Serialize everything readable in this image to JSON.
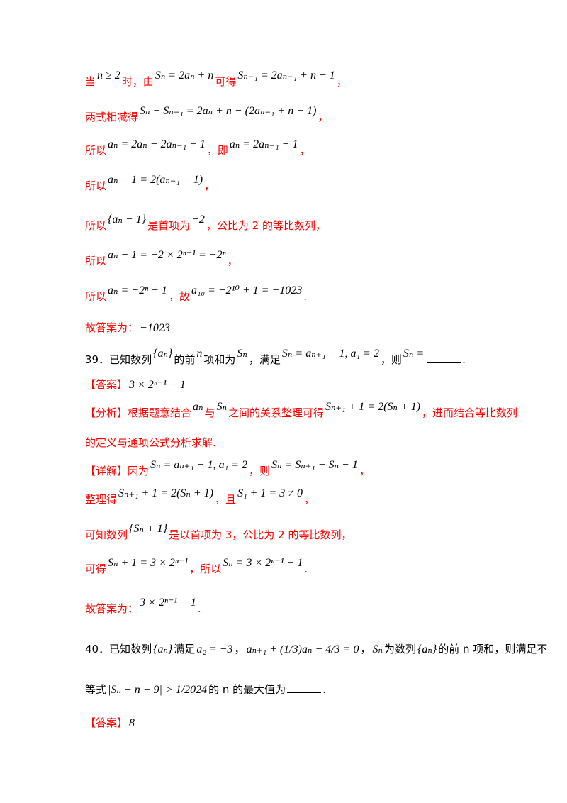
{
  "lines": [
    {
      "segments": [
        {
          "k": "red",
          "t": "当"
        },
        {
          "k": "math",
          "t": "n ≥ 2"
        },
        {
          "k": "red",
          "t": "时，由"
        },
        {
          "k": "math",
          "t": "Sₙ = 2aₙ + n"
        },
        {
          "k": "red",
          "t": "可得"
        },
        {
          "k": "math",
          "t": "Sₙ₋₁ = 2aₙ₋₁ + n − 1"
        },
        {
          "k": "red",
          "t": "，"
        }
      ]
    },
    {
      "segments": [
        {
          "k": "red",
          "t": "两式相减得"
        },
        {
          "k": "math",
          "t": "Sₙ − Sₙ₋₁ = 2aₙ + n − (2aₙ₋₁ + n − 1)"
        },
        {
          "k": "red",
          "t": "，"
        }
      ]
    },
    {
      "segments": [
        {
          "k": "red",
          "t": "所以"
        },
        {
          "k": "math",
          "t": "aₙ = 2aₙ − 2aₙ₋₁ + 1"
        },
        {
          "k": "red",
          "t": "，即"
        },
        {
          "k": "math",
          "t": "aₙ = 2aₙ₋₁ − 1"
        },
        {
          "k": "red",
          "t": "，"
        }
      ]
    },
    {
      "segments": [
        {
          "k": "red",
          "t": "所以"
        },
        {
          "k": "math",
          "t": "aₙ − 1 = 2(aₙ₋₁ − 1)"
        },
        {
          "k": "red",
          "t": "，"
        }
      ]
    },
    {
      "segments": [
        {
          "k": "red",
          "t": "所以"
        },
        {
          "k": "math",
          "t": "{aₙ − 1}"
        },
        {
          "k": "red",
          "t": "是首项为"
        },
        {
          "k": "math",
          "t": "−2"
        },
        {
          "k": "red",
          "t": "，公比为 2 的等比数列，"
        }
      ]
    },
    {
      "segments": [
        {
          "k": "red",
          "t": "所以"
        },
        {
          "k": "math",
          "t": "aₙ − 1 = −2 × 2ⁿ⁻¹ = −2ⁿ"
        },
        {
          "k": "red",
          "t": "，"
        }
      ]
    },
    {
      "segments": [
        {
          "k": "red",
          "t": "所以"
        },
        {
          "k": "math",
          "t": "aₙ = −2ⁿ + 1"
        },
        {
          "k": "red",
          "t": "，故"
        },
        {
          "k": "math",
          "t": "a₁₀ = −2¹⁰ + 1 = −1023"
        },
        {
          "k": "red",
          "t": "."
        }
      ]
    },
    {
      "segments": [
        {
          "k": "red",
          "t": "故答案为："
        },
        {
          "k": "mathn",
          "t": "−1023"
        }
      ]
    },
    {
      "segments": [
        {
          "k": "blk",
          "t": "39．已知数列"
        },
        {
          "k": "math",
          "t": "{aₙ}"
        },
        {
          "k": "blk",
          "t": "的前"
        },
        {
          "k": "math",
          "t": "n"
        },
        {
          "k": "blk",
          "t": "项和为"
        },
        {
          "k": "math",
          "t": "Sₙ"
        },
        {
          "k": "blk",
          "t": "，满足"
        },
        {
          "k": "math",
          "t": "Sₙ = aₙ₊₁ − 1, a₁ = 2"
        },
        {
          "k": "blk",
          "t": "，则"
        },
        {
          "k": "math",
          "t": "Sₙ ="
        },
        {
          "k": "blank",
          "t": ""
        },
        {
          "k": "blk",
          "t": "."
        }
      ]
    },
    {
      "segments": [
        {
          "k": "red",
          "t": "【答案】"
        },
        {
          "k": "mathn",
          "t": "3 × 2ⁿ⁻¹ − 1"
        }
      ]
    },
    {
      "segments": [
        {
          "k": "red",
          "t": "【分析】根据题意结合"
        },
        {
          "k": "math",
          "t": "aₙ"
        },
        {
          "k": "red",
          "t": "与"
        },
        {
          "k": "math",
          "t": "Sₙ"
        },
        {
          "k": "red",
          "t": "之间的关系整理可得"
        },
        {
          "k": "math",
          "t": "Sₙ₊₁ + 1 = 2(Sₙ + 1)"
        },
        {
          "k": "red",
          "t": "，进而结合等比数列"
        }
      ]
    },
    {
      "segments": [
        {
          "k": "red",
          "t": "的定义与通项公式分析求解."
        }
      ]
    },
    {
      "segments": [
        {
          "k": "red",
          "t": "【详解】因为"
        },
        {
          "k": "math",
          "t": "Sₙ = aₙ₊₁ − 1, a₁ = 2"
        },
        {
          "k": "red",
          "t": "，则"
        },
        {
          "k": "math",
          "t": "Sₙ = Sₙ₊₁ − Sₙ − 1"
        },
        {
          "k": "red",
          "t": "，"
        }
      ]
    },
    {
      "segments": [
        {
          "k": "red",
          "t": "整理得"
        },
        {
          "k": "math",
          "t": "Sₙ₊₁ + 1 = 2(Sₙ + 1)"
        },
        {
          "k": "red",
          "t": "，且"
        },
        {
          "k": "math",
          "t": "S₁ + 1 = 3 ≠ 0"
        },
        {
          "k": "red",
          "t": "，"
        }
      ]
    },
    {
      "segments": [
        {
          "k": "red",
          "t": "可知数列"
        },
        {
          "k": "math",
          "t": "{Sₙ + 1}"
        },
        {
          "k": "red",
          "t": "是以首项为 3，公比为 2 的等比数列，"
        }
      ]
    },
    {
      "segments": [
        {
          "k": "red",
          "t": "可得"
        },
        {
          "k": "math",
          "t": "Sₙ + 1 = 3 × 2ⁿ⁻¹"
        },
        {
          "k": "red",
          "t": "，所以"
        },
        {
          "k": "math",
          "t": "Sₙ = 3 × 2ⁿ⁻¹ − 1"
        },
        {
          "k": "red",
          "t": "."
        }
      ]
    },
    {
      "segments": [
        {
          "k": "red",
          "t": "故答案为："
        },
        {
          "k": "math",
          "t": "3 × 2ⁿ⁻¹ − 1"
        },
        {
          "k": "red",
          "t": "."
        }
      ]
    },
    {
      "segments": [
        {
          "k": "blk",
          "t": "40．已知数列"
        },
        {
          "k": "mathn",
          "t": "{aₙ}"
        },
        {
          "k": "blk",
          "t": "满足"
        },
        {
          "k": "mathn",
          "t": "a₂ = −3"
        },
        {
          "k": "blk",
          "t": "，"
        },
        {
          "k": "mathn",
          "t": "aₙ₊₁ + (1/3)aₙ − 4/3 = 0"
        },
        {
          "k": "blk",
          "t": "，"
        },
        {
          "k": "mathn",
          "t": "Sₙ"
        },
        {
          "k": "blk",
          "t": "为数列"
        },
        {
          "k": "mathn",
          "t": "{aₙ}"
        },
        {
          "k": "blk",
          "t": "的前 n 项和，则满足不"
        }
      ]
    },
    {
      "segments": [
        {
          "k": "blk",
          "t": "等式"
        },
        {
          "k": "mathn",
          "t": "|Sₙ − n − 9| > 1/2024"
        },
        {
          "k": "blk",
          "t": "的 n 的最大值为"
        },
        {
          "k": "blank",
          "t": ""
        },
        {
          "k": "blk",
          "t": "."
        }
      ]
    },
    {
      "segments": [
        {
          "k": "red",
          "t": "【答案】"
        },
        {
          "k": "mathn",
          "t": "8"
        }
      ]
    }
  ]
}
